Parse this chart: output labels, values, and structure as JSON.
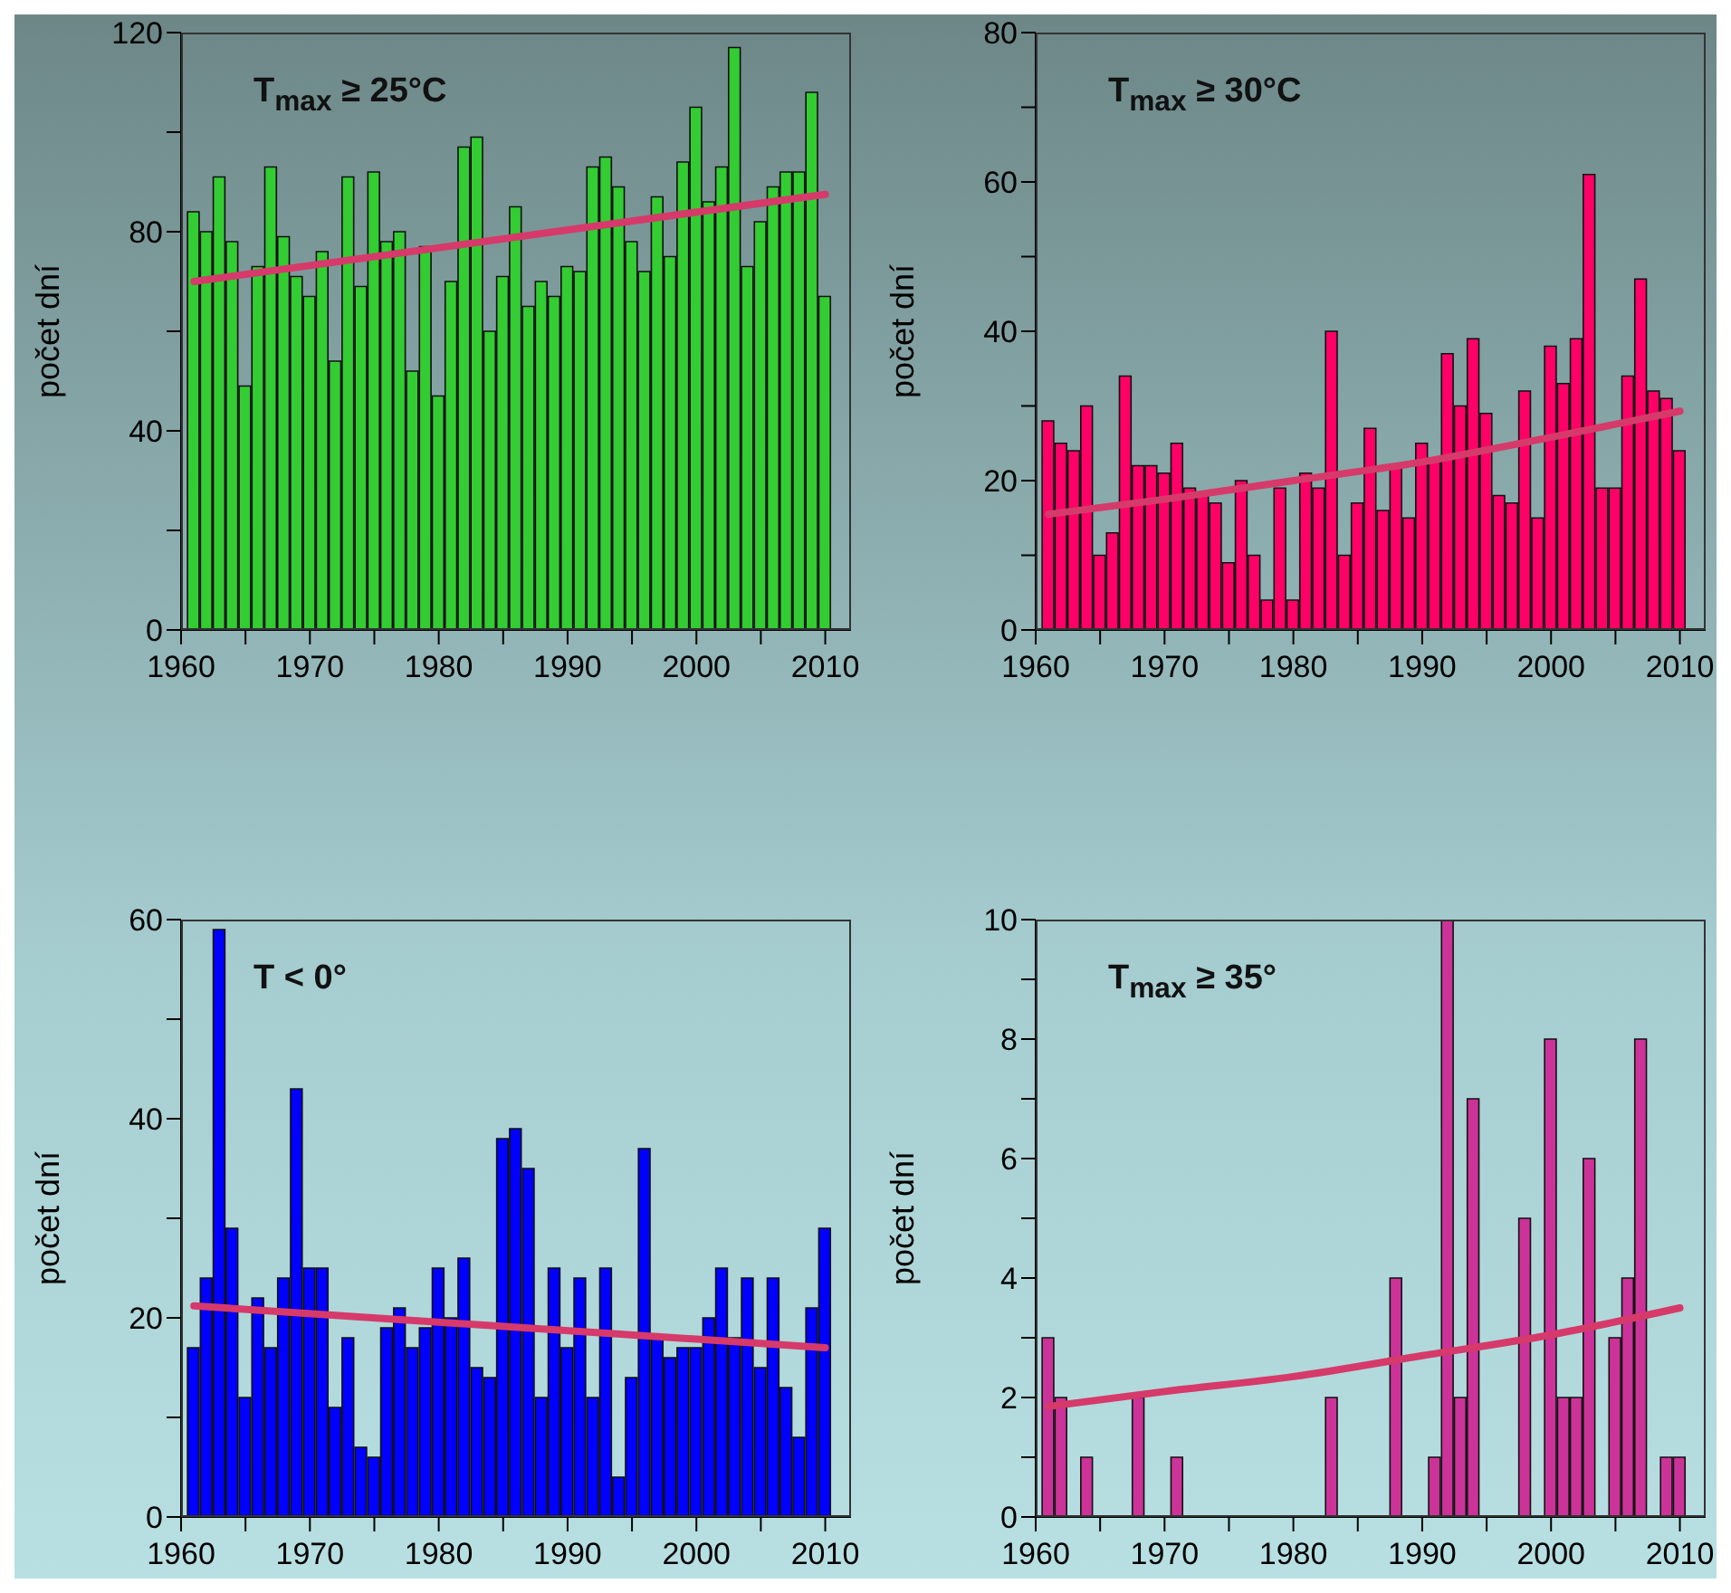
{
  "chart_data": [
    {
      "type": "bar",
      "title": "T$_{max}$ ≥ 25°C",
      "ylabel": "počet dní",
      "xlim": [
        1960,
        2012
      ],
      "ylim": [
        0,
        120
      ],
      "xticks": [
        1960,
        {
          "value": 1965,
          "label": null
        },
        1970,
        {
          "value": 1975,
          "label": null
        },
        1980,
        {
          "value": 1985,
          "label": null
        },
        1990,
        {
          "value": 1995,
          "label": null
        },
        2000,
        {
          "value": 2005,
          "label": null
        },
        2010
      ],
      "yticks": [
        0,
        {
          "value": 20,
          "label": null
        },
        40,
        {
          "value": 60,
          "label": null
        },
        80,
        {
          "value": 100,
          "label": null
        },
        120
      ],
      "x": [
        1961,
        1962,
        1963,
        1964,
        1965,
        1966,
        1967,
        1968,
        1969,
        1970,
        1971,
        1972,
        1973,
        1974,
        1975,
        1976,
        1977,
        1978,
        1979,
        1980,
        1981,
        1982,
        1983,
        1984,
        1985,
        1986,
        1987,
        1988,
        1989,
        1990,
        1991,
        1992,
        1993,
        1994,
        1995,
        1996,
        1997,
        1998,
        1999,
        2000,
        2001,
        2002,
        2003,
        2004,
        2005,
        2006,
        2007,
        2008,
        2009,
        2010
      ],
      "grid": false,
      "legend": false,
      "series": [
        {
          "color": "#33cc33",
          "values": [
            84,
            80,
            91,
            78,
            49,
            73,
            93,
            79,
            71,
            67,
            76,
            54,
            91,
            69,
            92,
            78,
            80,
            52,
            77,
            47,
            70,
            97,
            99,
            60,
            71,
            85,
            65,
            70,
            67,
            73,
            72,
            93,
            95,
            89,
            78,
            72,
            87,
            75,
            94,
            105,
            86,
            93,
            117,
            73,
            82,
            89,
            92,
            92,
            108,
            67
          ]
        },
        {
          "type": "line",
          "color": "#d63a6a",
          "x": [
            1961,
            2010
          ],
          "values": [
            70,
            87.5
          ]
        }
      ]
    },
    {
      "type": "bar",
      "title": "T$_{max}$ ≥ 30°C",
      "ylabel": "počet dní",
      "xlim": [
        1960,
        2012
      ],
      "ylim": [
        0,
        80
      ],
      "xticks": [
        1960,
        {
          "value": 1965,
          "label": null
        },
        1970,
        {
          "value": 1975,
          "label": null
        },
        1980,
        {
          "value": 1985,
          "label": null
        },
        1990,
        {
          "value": 1995,
          "label": null
        },
        2000,
        {
          "value": 2005,
          "label": null
        },
        2010
      ],
      "yticks": [
        0,
        {
          "value": 10,
          "label": null
        },
        20,
        {
          "value": 30,
          "label": null
        },
        40,
        {
          "value": 50,
          "label": null
        },
        60,
        {
          "value": 70,
          "label": null
        },
        80
      ],
      "x": [
        1961,
        1962,
        1963,
        1964,
        1965,
        1966,
        1967,
        1968,
        1969,
        1970,
        1971,
        1972,
        1973,
        1974,
        1975,
        1976,
        1977,
        1978,
        1979,
        1980,
        1981,
        1982,
        1983,
        1984,
        1985,
        1986,
        1987,
        1988,
        1989,
        1990,
        1991,
        1992,
        1993,
        1994,
        1995,
        1996,
        1997,
        1998,
        1999,
        2000,
        2001,
        2002,
        2003,
        2004,
        2005,
        2006,
        2007,
        2008,
        2009,
        2010
      ],
      "grid": false,
      "legend": false,
      "series": [
        {
          "color": "#ff0066",
          "values": [
            28,
            25,
            24,
            30,
            10,
            13,
            34,
            22,
            22,
            21,
            25,
            19,
            18,
            17,
            9,
            20,
            10,
            4,
            19,
            4,
            21,
            19,
            40,
            10,
            17,
            27,
            16,
            22,
            15,
            25,
            23,
            37,
            30,
            39,
            29,
            18,
            17,
            32,
            15,
            38,
            33,
            39,
            61,
            19,
            19,
            34,
            47,
            32,
            31,
            24
          ]
        },
        {
          "type": "line",
          "color": "#d63a6a",
          "x": [
            1961,
            1970,
            1980,
            1990,
            2000,
            2010
          ],
          "values": [
            15.5,
            17.5,
            20,
            22.5,
            25.8,
            29.3
          ]
        }
      ]
    },
    {
      "type": "bar",
      "title": "T < 0°",
      "ylabel": "počet dní",
      "xlim": [
        1960,
        2012
      ],
      "ylim": [
        0,
        60
      ],
      "xticks": [
        1960,
        {
          "value": 1965,
          "label": null
        },
        1970,
        {
          "value": 1975,
          "label": null
        },
        1980,
        {
          "value": 1985,
          "label": null
        },
        1990,
        {
          "value": 1995,
          "label": null
        },
        2000,
        {
          "value": 2005,
          "label": null
        },
        2010
      ],
      "yticks": [
        0,
        {
          "value": 10,
          "label": null
        },
        20,
        {
          "value": 30,
          "label": null
        },
        40,
        {
          "value": 50,
          "label": null
        },
        60
      ],
      "x": [
        1961,
        1962,
        1963,
        1964,
        1965,
        1966,
        1967,
        1968,
        1969,
        1970,
        1971,
        1972,
        1973,
        1974,
        1975,
        1976,
        1977,
        1978,
        1979,
        1980,
        1981,
        1982,
        1983,
        1984,
        1985,
        1986,
        1987,
        1988,
        1989,
        1990,
        1991,
        1992,
        1993,
        1994,
        1995,
        1996,
        1997,
        1998,
        1999,
        2000,
        2001,
        2002,
        2003,
        2004,
        2005,
        2006,
        2007,
        2008,
        2009,
        2010
      ],
      "grid": false,
      "legend": false,
      "series": [
        {
          "color": "#0000ff",
          "values": [
            17,
            24,
            59,
            29,
            12,
            22,
            17,
            24,
            43,
            25,
            25,
            11,
            18,
            7,
            6,
            19,
            21,
            17,
            19,
            25,
            20,
            26,
            15,
            14,
            38,
            39,
            35,
            12,
            25,
            17,
            24,
            12,
            25,
            4,
            14,
            37,
            18,
            16,
            17,
            17,
            20,
            25,
            18,
            24,
            15,
            24,
            13,
            8,
            21,
            29
          ]
        },
        {
          "type": "line",
          "color": "#d63a6a",
          "x": [
            1961,
            2010
          ],
          "values": [
            21.2,
            17
          ]
        }
      ]
    },
    {
      "type": "bar",
      "title": "T$_{max}$ ≥ 35°",
      "ylabel": "počet dní",
      "xlim": [
        1960,
        2012
      ],
      "ylim": [
        0,
        10
      ],
      "xticks": [
        1960,
        {
          "value": 1965,
          "label": null
        },
        1970,
        {
          "value": 1975,
          "label": null
        },
        1980,
        {
          "value": 1985,
          "label": null
        },
        1990,
        {
          "value": 1995,
          "label": null
        },
        2000,
        {
          "value": 2005,
          "label": null
        },
        2010
      ],
      "yticks": [
        0,
        {
          "value": 1,
          "label": null
        },
        2,
        {
          "value": 3,
          "label": null
        },
        4,
        {
          "value": 5,
          "label": null
        },
        6,
        {
          "value": 7,
          "label": null
        },
        8,
        {
          "value": 9,
          "label": null
        },
        10
      ],
      "x": [
        1961,
        1962,
        1963,
        1964,
        1965,
        1966,
        1967,
        1968,
        1969,
        1970,
        1971,
        1972,
        1973,
        1974,
        1975,
        1976,
        1977,
        1978,
        1979,
        1980,
        1981,
        1982,
        1983,
        1984,
        1985,
        1986,
        1987,
        1988,
        1989,
        1990,
        1991,
        1992,
        1993,
        1994,
        1995,
        1996,
        1997,
        1998,
        1999,
        2000,
        2001,
        2002,
        2003,
        2004,
        2005,
        2006,
        2007,
        2008,
        2009,
        2010
      ],
      "grid": false,
      "legend": false,
      "series": [
        {
          "color": "#cc3399",
          "values": [
            3,
            2,
            0,
            1,
            0,
            0,
            0,
            2,
            0,
            0,
            1,
            0,
            0,
            0,
            0,
            0,
            0,
            0,
            0,
            0,
            0,
            0,
            2,
            0,
            0,
            0,
            0,
            4,
            0,
            0,
            1,
            10,
            2,
            7,
            0,
            0,
            0,
            5,
            0,
            8,
            2,
            2,
            6,
            0,
            3,
            4,
            8,
            0,
            1,
            1
          ]
        },
        {
          "type": "line",
          "color": "#d63a6a",
          "x": [
            1961,
            1970,
            1980,
            1990,
            2000,
            2010
          ],
          "values": [
            1.85,
            2.1,
            2.35,
            2.7,
            3.05,
            3.5
          ]
        }
      ]
    }
  ]
}
